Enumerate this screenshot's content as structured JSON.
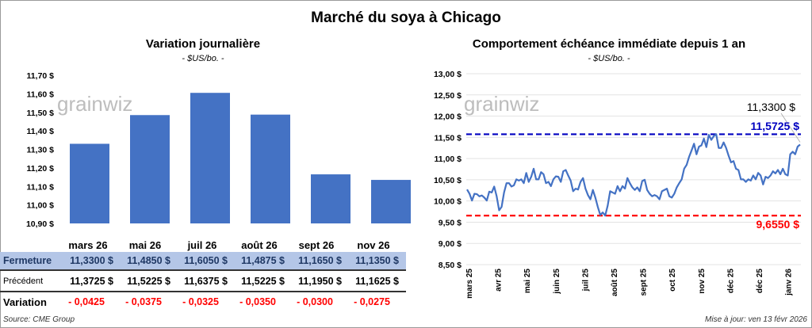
{
  "title": "Marché du soya à Chicago",
  "logo_text": "grainwiz",
  "left_panel": {
    "subtitle": "Variation journalière",
    "unit": "- $US/bo. -"
  },
  "right_panel": {
    "subtitle": "Comportement échéance immédiate depuis 1 an",
    "unit": "- $US/bo. -"
  },
  "table": {
    "months": [
      "mars 26",
      "mai 26",
      "juil 26",
      "août 26",
      "sept 26",
      "nov 26"
    ],
    "rows": [
      {
        "label": "Fermeture",
        "values": [
          "11,3300  $",
          "11,4850  $",
          "11,6050  $",
          "11,4875  $",
          "11,1650  $",
          "11,1350  $"
        ]
      },
      {
        "label": "Précédent",
        "values": [
          "11,3725  $",
          "11,5225  $",
          "11,6375  $",
          "11,5225  $",
          "11,1950  $",
          "11,1625  $"
        ]
      },
      {
        "label": "Variation",
        "values": [
          "- 0,0425",
          "- 0,0375",
          "- 0,0325",
          "- 0,0350",
          "- 0,0300",
          "- 0,0275"
        ]
      }
    ]
  },
  "source": "Source: CME Group",
  "updated": "Mise à jour: ven 13 févr 2026",
  "chart_data": [
    {
      "type": "bar",
      "title": "Variation journalière",
      "subtitle": "- $US/bo. -",
      "categories": [
        "mars 26",
        "mai 26",
        "juil 26",
        "août 26",
        "sept 26",
        "nov 26"
      ],
      "values": [
        11.33,
        11.485,
        11.605,
        11.4875,
        11.165,
        11.135
      ],
      "ylim": [
        10.9,
        11.7
      ],
      "yticks": [
        "11,70 $",
        "11,60 $",
        "11,50 $",
        "11,40 $",
        "11,30 $",
        "11,20 $",
        "11,10 $",
        "11,00 $",
        "10,90 $"
      ],
      "grid": false,
      "color": "#4472c4"
    },
    {
      "type": "line",
      "title": "Comportement échéance immédiate depuis 1 an",
      "subtitle": "- $US/bo. -",
      "xticks": [
        "mars 25",
        "avr 25",
        "mai 25",
        "juin 25",
        "juil 25",
        "août 25",
        "sept 25",
        "oct 25",
        "nov 25",
        "déc 25",
        "déc 25",
        "janv 26"
      ],
      "x_range": [
        "mars 25",
        "févr 26"
      ],
      "ylim": [
        8.5,
        13.0
      ],
      "yticks": [
        "13,00 $",
        "12,50 $",
        "12,00 $",
        "11,50 $",
        "11,00 $",
        "10,50 $",
        "10,00 $",
        "9,50 $",
        "9,00 $",
        "8,50 $"
      ],
      "grid": true,
      "color": "#4472c4",
      "values": [
        10.27,
        10.17,
        10.01,
        10.17,
        10.16,
        10.11,
        10.13,
        10.08,
        10.01,
        10.22,
        10.2,
        10.34,
        10.11,
        9.78,
        9.86,
        10.2,
        10.42,
        10.42,
        10.34,
        10.37,
        10.51,
        10.48,
        10.51,
        10.42,
        10.66,
        10.45,
        10.57,
        10.76,
        10.51,
        10.51,
        10.68,
        10.63,
        10.42,
        10.45,
        10.35,
        10.51,
        10.58,
        10.57,
        10.45,
        10.7,
        10.73,
        10.6,
        10.48,
        10.23,
        10.29,
        10.27,
        10.45,
        10.54,
        10.29,
        10.14,
        10.04,
        10.26,
        10.08,
        9.86,
        9.67,
        9.73,
        9.655,
        9.89,
        10.23,
        10.2,
        10.17,
        10.35,
        10.23,
        10.35,
        10.29,
        10.54,
        10.42,
        10.32,
        10.26,
        10.32,
        10.23,
        10.47,
        10.5,
        10.26,
        10.17,
        10.11,
        10.14,
        10.11,
        10.04,
        10.23,
        10.26,
        10.29,
        10.11,
        10.08,
        10.17,
        10.32,
        10.42,
        10.51,
        10.76,
        10.85,
        11.04,
        11.19,
        11.35,
        11.1,
        11.28,
        11.31,
        11.47,
        11.27,
        11.56,
        11.44,
        11.53,
        11.5725,
        11.25,
        11.25,
        11.38,
        11.25,
        11.07,
        10.91,
        10.94,
        10.76,
        10.73,
        10.51,
        10.51,
        10.45,
        10.51,
        10.48,
        10.6,
        10.51,
        10.66,
        10.6,
        10.39,
        10.57,
        10.54,
        10.6,
        10.7,
        10.65,
        10.73,
        10.63,
        10.76,
        10.63,
        10.6,
        11.1,
        11.16,
        11.1,
        11.28,
        11.33
      ],
      "reference_lines": [
        {
          "value": 11.5725,
          "label": "11,5725 $",
          "color": "#0000c0",
          "style": "dashed"
        },
        {
          "value": 9.655,
          "label": "9,6550 $",
          "color": "#ff0000",
          "style": "dashed"
        }
      ],
      "last_value_label": "11,3300 $"
    }
  ]
}
